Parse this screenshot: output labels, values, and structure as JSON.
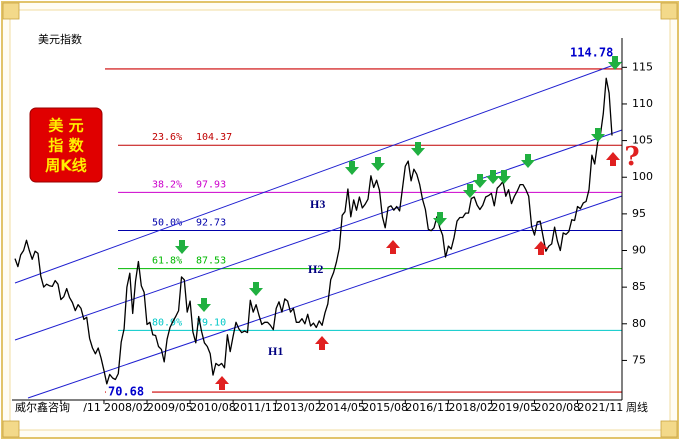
{
  "chart_data": {
    "type": "line",
    "title": "美元指数",
    "badge": [
      "美  元",
      "指  数",
      "周K线"
    ],
    "source": "威尔鑫咨询",
    "period": "周线",
    "channels": [
      "H1",
      "H2",
      "H3"
    ],
    "high": 114.78,
    "low": 70.68,
    "extreme_color": "#cc0000",
    "levels": [
      {
        "name": "23.6%",
        "value": 104.37,
        "color": "#c00000"
      },
      {
        "name": "38.2%",
        "value": 97.93,
        "color": "#cc00cc"
      },
      {
        "name": "50.0%",
        "value": 92.73,
        "color": "#0000aa"
      },
      {
        "name": "61.8%",
        "value": 87.53,
        "color": "#00b800"
      },
      {
        "name": "80.9%",
        "value": 79.1,
        "value_label": "79.10",
        "color": "#00c8c8"
      }
    ],
    "color": "#000000",
    "x": [
      "2005/07",
      "2005/08",
      "2005/09",
      "2005/10",
      "2005/11",
      "2005/12",
      "2006/01",
      "2006/02",
      "2006/03",
      "2006/04",
      "2006/05",
      "2006/06",
      "2006/07",
      "2006/08",
      "2006/09",
      "2006/10",
      "2006/11",
      "2006/12",
      "2007/01",
      "2007/02",
      "2007/03",
      "2007/04",
      "2007/05",
      "2007/06",
      "2007/07",
      "2007/08",
      "2007/09",
      "2007/10",
      "2007/11",
      "2007/12",
      "2008/01",
      "2008/02",
      "2008/03",
      "2008/04",
      "2008/05",
      "2008/06",
      "2008/07",
      "2008/08",
      "2008/09",
      "2008/10",
      "2008/11",
      "2008/12",
      "2009/01",
      "2009/02",
      "2009/03",
      "2009/04",
      "2009/05",
      "2009/06",
      "2009/07",
      "2009/08",
      "2009/09",
      "2009/10",
      "2009/11",
      "2009/12",
      "2010/01",
      "2010/02",
      "2010/03",
      "2010/04",
      "2010/05",
      "2010/06",
      "2010/07",
      "2010/08",
      "2010/09",
      "2010/10",
      "2010/11",
      "2010/12",
      "2011/01",
      "2011/02",
      "2011/03",
      "2011/04",
      "2011/05",
      "2011/06",
      "2011/07",
      "2011/08",
      "2011/09",
      "2011/10",
      "2011/11",
      "2011/12",
      "2012/01",
      "2012/02",
      "2012/03",
      "2012/04",
      "2012/05",
      "2012/06",
      "2012/07",
      "2012/08",
      "2012/09",
      "2012/10",
      "2012/11",
      "2012/12",
      "2013/01",
      "2013/02",
      "2013/03",
      "2013/04",
      "2013/05",
      "2013/06",
      "2013/07",
      "2013/08",
      "2013/09",
      "2013/10",
      "2013/11",
      "2013/12",
      "2014/01",
      "2014/02",
      "2014/03",
      "2014/04",
      "2014/05",
      "2014/06",
      "2014/07",
      "2014/08",
      "2014/09",
      "2014/10",
      "2014/11",
      "2014/12",
      "2015/01",
      "2015/02",
      "2015/03",
      "2015/04",
      "2015/05",
      "2015/06",
      "2015/07",
      "2015/08",
      "2015/09",
      "2015/10",
      "2015/11",
      "2015/12",
      "2016/01",
      "2016/02",
      "2016/03",
      "2016/04",
      "2016/05",
      "2016/06",
      "2016/07",
      "2016/08",
      "2016/09",
      "2016/10",
      "2016/11",
      "2016/12",
      "2017/01",
      "2017/02",
      "2017/03",
      "2017/04",
      "2017/05",
      "2017/06",
      "2017/07",
      "2017/08",
      "2017/09",
      "2017/10",
      "2017/11",
      "2017/12",
      "2018/01",
      "2018/02",
      "2018/03",
      "2018/04",
      "2018/05",
      "2018/06",
      "2018/07",
      "2018/08",
      "2018/09",
      "2018/10",
      "2018/11",
      "2018/12",
      "2019/01",
      "2019/02",
      "2019/03",
      "2019/04",
      "2019/05",
      "2019/06",
      "2019/07",
      "2019/08",
      "2019/09",
      "2019/10",
      "2019/11",
      "2019/12",
      "2020/01",
      "2020/02",
      "2020/03",
      "2020/04",
      "2020/05",
      "2020/06",
      "2020/07",
      "2020/08",
      "2020/09",
      "2020/10",
      "2020/11",
      "2020/12",
      "2021/01",
      "2021/02",
      "2021/03",
      "2021/04",
      "2021/05",
      "2021/06",
      "2021/07",
      "2021/08",
      "2021/09",
      "2021/10",
      "2021/11",
      "2021/12",
      "2022/01",
      "2022/02",
      "2022/03",
      "2022/04",
      "2022/05",
      "2022/06",
      "2022/07",
      "2022/08",
      "2022/09",
      "2022/10",
      "2022/11"
    ],
    "values": [
      88.9,
      87.8,
      89.4,
      90.0,
      91.4,
      90.0,
      88.8,
      89.9,
      89.6,
      86.5,
      85.0,
      85.4,
      85.2,
      85.1,
      85.9,
      85.4,
      83.3,
      83.7,
      84.8,
      83.6,
      82.9,
      81.8,
      82.6,
      82.1,
      80.6,
      80.9,
      78.0,
      76.7,
      75.9,
      76.7,
      75.3,
      73.6,
      71.8,
      73.1,
      72.6,
      72.4,
      73.2,
      77.5,
      79.3,
      85.0,
      86.9,
      81.4,
      85.8,
      88.5,
      85.2,
      84.3,
      79.9,
      80.2,
      78.5,
      78.4,
      76.9,
      76.5,
      74.8,
      77.9,
      79.5,
      80.3,
      81.0,
      81.8,
      86.4,
      86.0,
      81.6,
      83.1,
      78.9,
      77.4,
      81.0,
      79.0,
      77.4,
      76.9,
      75.9,
      73.0,
      74.6,
      74.3,
      74.6,
      74.0,
      78.5,
      76.2,
      78.3,
      80.2,
      79.3,
      78.8,
      79.0,
      78.8,
      83.2,
      81.6,
      82.6,
      81.2,
      79.9,
      80.2,
      80.2,
      79.8,
      79.2,
      82.1,
      83.0,
      81.6,
      83.4,
      83.1,
      81.6,
      82.1,
      80.2,
      80.2,
      80.7,
      80.0,
      81.3,
      79.7,
      80.1,
      79.5,
      80.4,
      79.8,
      81.5,
      82.7,
      86.0,
      87.0,
      88.4,
      90.3,
      94.8,
      95.3,
      98.4,
      94.6,
      96.9,
      95.5,
      97.3,
      95.8,
      96.3,
      97.0,
      100.2,
      98.6,
      99.6,
      98.2,
      94.6,
      93.1,
      95.9,
      96.1,
      95.5,
      96.0,
      95.4,
      98.4,
      101.5,
      102.2,
      99.5,
      101.1,
      100.4,
      99.0,
      97.0,
      95.6,
      92.9,
      92.7,
      93.1,
      94.6,
      93.1,
      92.1,
      89.1,
      90.6,
      90.2,
      91.8,
      94.0,
      94.5,
      94.5,
      95.1,
      95.1,
      97.1,
      97.3,
      96.2,
      95.6,
      96.2,
      97.3,
      97.5,
      97.8,
      96.1,
      98.5,
      98.9,
      99.4,
      97.4,
      98.3,
      96.4,
      97.4,
      98.1,
      99.0,
      99.0,
      98.3,
      97.4,
      93.3,
      92.1,
      93.9,
      94.0,
      91.9,
      89.9,
      90.6,
      90.9,
      93.2,
      91.3,
      90.0,
      92.4,
      92.2,
      92.6,
      94.2,
      94.1,
      96.0,
      95.7,
      96.5,
      96.7,
      98.3,
      103.0,
      101.8,
      104.7,
      105.9,
      108.7,
      113.5,
      111.5,
      105.7
    ],
    "xticks": [
      {
        "value": "2006/11",
        "label": "/11"
      },
      "2008/02",
      "2009/05",
      "2010/08",
      "2011/11",
      "2013/02",
      "2014/05",
      "2015/08",
      "2016/11",
      "2018/02",
      "2019/05",
      "2020/08",
      "2021/11"
    ],
    "ylim": [
      69.6,
      119
    ],
    "yticks": [
      75,
      80,
      85,
      90,
      95,
      100,
      105,
      110,
      115
    ]
  }
}
